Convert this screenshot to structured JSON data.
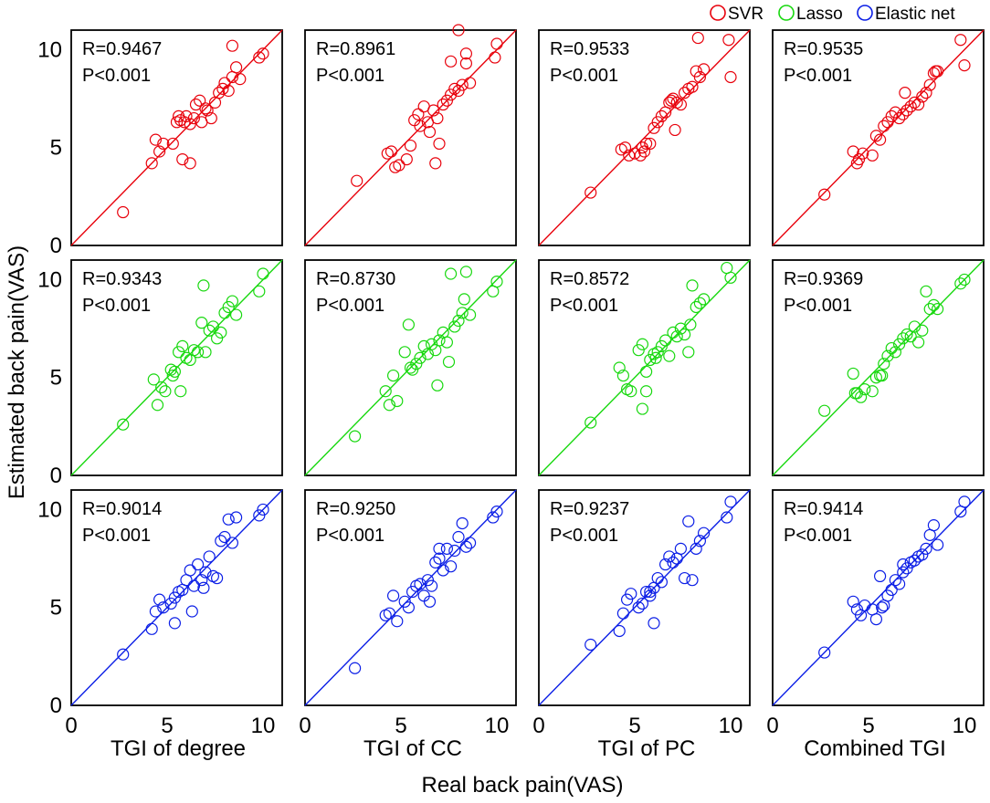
{
  "legend": {
    "position": "top-right",
    "entries": [
      {
        "label": "SVR",
        "color": "#e8000b"
      },
      {
        "label": "Lasso",
        "color": "#17d80e"
      },
      {
        "label": "Elastic net",
        "color": "#0b1ee6"
      }
    ]
  },
  "xlabel": "Real back pain(VAS)",
  "ylabel": "Estimated back pain(VAS)",
  "column_labels": [
    "TGI of degree",
    "TGI of CC",
    "TGI of PC",
    "Combined TGI"
  ],
  "chart_data": {
    "type": "scatter",
    "title": "",
    "xlabel": "Real back pain(VAS)",
    "ylabel": "Estimated back pain(VAS)",
    "xlim": [
      0,
      11
    ],
    "ylim": [
      0,
      11
    ],
    "xticks": [
      0,
      5,
      10
    ],
    "yticks": [
      0,
      5,
      10
    ],
    "models": [
      "SVR",
      "Lasso",
      "Elastic net"
    ],
    "features": [
      "TGI of degree",
      "TGI of CC",
      "TGI of PC",
      "Combined TGI"
    ],
    "panels": [
      {
        "model": "SVR",
        "feature": "TGI of degree",
        "r_text": "R=0.9467",
        "p_text": "P<0.001",
        "x": [
          2.7,
          4.2,
          4.4,
          4.6,
          4.8,
          5.3,
          5.5,
          5.6,
          5.7,
          5.9,
          6.0,
          6.2,
          6.4,
          6.5,
          6.7,
          6.8,
          7.0,
          7.1,
          7.3,
          7.5,
          7.7,
          7.9,
          8.0,
          8.2,
          8.4,
          8.6,
          8.8,
          9.8,
          10.0,
          8.4,
          5.8,
          6.2
        ],
        "y": [
          1.7,
          4.2,
          5.4,
          4.8,
          5.2,
          5.2,
          6.3,
          6.6,
          6.4,
          6.3,
          6.6,
          6.2,
          6.5,
          7.2,
          7.4,
          6.3,
          7.0,
          6.9,
          6.5,
          7.3,
          7.8,
          8.0,
          8.3,
          7.9,
          8.6,
          9.1,
          8.5,
          9.6,
          9.8,
          10.2,
          4.4,
          4.2
        ]
      },
      {
        "model": "SVR",
        "feature": "TGI of CC",
        "r_text": "R=0.8961",
        "p_text": "P<0.001",
        "x": [
          2.7,
          4.3,
          4.5,
          4.7,
          4.9,
          5.3,
          5.5,
          5.7,
          5.9,
          6.0,
          6.2,
          6.4,
          6.5,
          6.7,
          6.9,
          7.0,
          7.2,
          7.4,
          7.6,
          7.8,
          8.0,
          8.2,
          8.4,
          8.6,
          9.9,
          10.0,
          8.0,
          7.6,
          8.4,
          6.8
        ],
        "y": [
          3.3,
          4.7,
          4.8,
          4.0,
          4.1,
          4.4,
          5.1,
          6.4,
          6.7,
          6.1,
          7.1,
          6.3,
          5.8,
          6.9,
          6.5,
          5.2,
          7.2,
          7.4,
          7.7,
          8.0,
          7.9,
          8.2,
          9.8,
          8.3,
          9.6,
          10.3,
          11.0,
          9.4,
          9.3,
          4.2
        ]
      },
      {
        "model": "SVR",
        "feature": "TGI of PC",
        "r_text": "R=0.9533",
        "p_text": "P<0.001",
        "x": [
          2.7,
          4.3,
          4.5,
          4.7,
          5.0,
          5.3,
          5.5,
          5.6,
          5.8,
          6.0,
          6.2,
          6.4,
          6.6,
          6.8,
          7.0,
          7.2,
          7.4,
          7.6,
          7.8,
          8.0,
          8.2,
          8.4,
          8.6,
          9.9,
          10.0,
          8.3,
          7.1,
          6.9,
          5.4
        ],
        "y": [
          2.7,
          4.9,
          5.0,
          4.6,
          4.7,
          4.6,
          4.8,
          5.2,
          5.2,
          6.0,
          6.3,
          6.6,
          6.8,
          7.3,
          7.5,
          7.3,
          7.2,
          7.8,
          8.0,
          8.1,
          8.9,
          8.6,
          9.0,
          10.5,
          8.6,
          10.6,
          5.9,
          7.4,
          5.0
        ]
      },
      {
        "model": "SVR",
        "feature": "Combined TGI",
        "r_text": "R=0.9535",
        "p_text": "P<0.001",
        "x": [
          2.7,
          4.2,
          4.4,
          4.5,
          4.7,
          5.2,
          5.4,
          5.6,
          5.8,
          6.0,
          6.2,
          6.4,
          6.6,
          6.8,
          7.0,
          7.2,
          7.4,
          7.6,
          7.8,
          8.0,
          8.2,
          8.4,
          8.6,
          9.8,
          10.0,
          8.5,
          6.9
        ],
        "y": [
          2.6,
          4.8,
          4.2,
          4.4,
          4.7,
          4.6,
          5.6,
          5.4,
          6.1,
          6.3,
          6.6,
          6.8,
          6.5,
          6.7,
          6.9,
          7.1,
          7.3,
          7.2,
          7.6,
          7.8,
          8.2,
          8.8,
          8.9,
          10.5,
          9.2,
          8.9,
          7.8
        ]
      },
      {
        "model": "Lasso",
        "feature": "TGI of degree",
        "r_text": "R=0.9343",
        "p_text": "P<0.001",
        "x": [
          2.7,
          4.3,
          4.5,
          4.7,
          4.9,
          5.2,
          5.4,
          5.6,
          5.8,
          6.0,
          6.2,
          6.4,
          6.6,
          6.8,
          7.0,
          7.2,
          7.4,
          7.6,
          7.8,
          8.0,
          8.2,
          8.4,
          8.6,
          9.8,
          10.0,
          6.9,
          5.7,
          5.3
        ],
        "y": [
          2.6,
          4.9,
          3.6,
          4.5,
          4.3,
          5.4,
          5.3,
          6.3,
          6.6,
          6.0,
          5.9,
          6.4,
          6.3,
          7.8,
          6.3,
          7.4,
          7.6,
          7.0,
          7.3,
          8.3,
          8.6,
          8.9,
          8.2,
          9.4,
          10.3,
          9.7,
          4.3,
          5.1
        ]
      },
      {
        "model": "Lasso",
        "feature": "TGI of CC",
        "r_text": "R=0.8730",
        "p_text": "P<0.001",
        "x": [
          2.6,
          4.2,
          4.4,
          4.6,
          4.8,
          5.2,
          5.4,
          5.6,
          5.8,
          6.0,
          6.2,
          6.4,
          6.6,
          6.8,
          7.0,
          7.2,
          7.4,
          7.6,
          7.8,
          8.0,
          8.2,
          8.4,
          8.6,
          9.8,
          10.0,
          7.5,
          8.3,
          5.5,
          6.9
        ],
        "y": [
          2.0,
          4.3,
          3.6,
          5.1,
          3.8,
          6.3,
          7.7,
          5.4,
          5.7,
          6.0,
          6.6,
          6.2,
          6.7,
          6.4,
          6.9,
          7.3,
          6.8,
          10.3,
          7.6,
          7.9,
          8.3,
          10.4,
          8.2,
          9.4,
          9.9,
          5.8,
          9.0,
          5.5,
          4.6
        ]
      },
      {
        "model": "Lasso",
        "feature": "TGI of PC",
        "r_text": "R=0.8572",
        "p_text": "P<0.001",
        "x": [
          2.7,
          4.2,
          4.4,
          4.6,
          4.8,
          5.2,
          5.4,
          5.6,
          5.8,
          6.0,
          6.2,
          6.4,
          6.6,
          6.8,
          7.0,
          7.2,
          7.4,
          7.6,
          7.8,
          8.0,
          8.2,
          8.4,
          8.6,
          9.8,
          10.0,
          7.9,
          5.4,
          5.6,
          6.1
        ],
        "y": [
          2.7,
          5.5,
          5.1,
          4.4,
          4.3,
          6.4,
          3.4,
          4.3,
          5.9,
          6.2,
          6.3,
          6.6,
          6.9,
          6.1,
          7.3,
          7.1,
          7.5,
          7.2,
          6.3,
          9.7,
          8.6,
          8.8,
          9.0,
          10.6,
          10.1,
          7.7,
          6.7,
          5.3,
          6.0
        ]
      },
      {
        "model": "Lasso",
        "feature": "Combined TGI",
        "r_text": "R=0.9369",
        "p_text": "P<0.001",
        "x": [
          2.7,
          4.2,
          4.4,
          4.6,
          4.8,
          5.2,
          5.4,
          5.6,
          5.8,
          6.0,
          6.2,
          6.4,
          6.6,
          6.8,
          7.0,
          7.2,
          7.4,
          7.6,
          7.8,
          8.0,
          8.2,
          8.4,
          8.6,
          9.8,
          10.0,
          5.7,
          4.3
        ],
        "y": [
          3.3,
          5.2,
          4.2,
          4.0,
          4.4,
          4.3,
          5.0,
          5.1,
          5.7,
          6.1,
          6.5,
          6.3,
          6.7,
          7.0,
          7.2,
          7.1,
          7.6,
          6.8,
          7.4,
          9.4,
          8.5,
          8.7,
          8.5,
          9.8,
          10.0,
          5.1,
          4.2
        ]
      },
      {
        "model": "Elastic net",
        "feature": "TGI of degree",
        "r_text": "R=0.9014",
        "p_text": "P<0.001",
        "x": [
          2.7,
          4.2,
          4.4,
          4.6,
          4.8,
          5.2,
          5.4,
          5.6,
          5.8,
          6.0,
          6.2,
          6.4,
          6.6,
          6.8,
          7.0,
          7.2,
          7.4,
          7.6,
          7.8,
          8.0,
          8.2,
          8.4,
          8.6,
          9.8,
          10.0,
          6.3,
          5.4,
          6.9
        ],
        "y": [
          2.6,
          3.9,
          4.8,
          5.4,
          5.0,
          5.2,
          5.5,
          5.8,
          5.9,
          6.4,
          6.9,
          6.1,
          7.2,
          6.4,
          6.8,
          7.6,
          6.6,
          6.5,
          8.4,
          8.6,
          9.5,
          8.3,
          9.6,
          9.7,
          10.0,
          4.8,
          4.2,
          6.0
        ]
      },
      {
        "model": "Elastic net",
        "feature": "TGI of CC",
        "r_text": "R=0.9250",
        "p_text": "P<0.001",
        "x": [
          2.6,
          4.2,
          4.4,
          4.6,
          4.8,
          5.2,
          5.4,
          5.6,
          5.8,
          6.0,
          6.2,
          6.4,
          6.6,
          6.8,
          7.0,
          7.2,
          7.4,
          7.6,
          7.8,
          8.0,
          8.2,
          8.4,
          8.6,
          9.8,
          10.0,
          6.5,
          7.0
        ],
        "y": [
          1.9,
          4.6,
          4.7,
          5.6,
          4.3,
          5.3,
          5.0,
          5.8,
          6.1,
          6.2,
          5.6,
          6.4,
          6.1,
          7.3,
          7.5,
          6.9,
          8.0,
          7.1,
          7.9,
          8.6,
          9.3,
          8.1,
          8.3,
          9.6,
          9.9,
          5.3,
          8.0
        ]
      },
      {
        "model": "Elastic net",
        "feature": "TGI of PC",
        "r_text": "R=0.9237",
        "p_text": "P<0.001",
        "x": [
          2.7,
          4.2,
          4.4,
          4.6,
          4.8,
          5.2,
          5.4,
          5.6,
          5.8,
          6.0,
          6.2,
          6.4,
          6.6,
          6.8,
          7.0,
          7.2,
          7.4,
          7.6,
          7.8,
          8.0,
          8.2,
          8.4,
          8.6,
          9.8,
          10.0,
          5.8,
          6.0
        ],
        "y": [
          3.1,
          3.8,
          4.7,
          5.4,
          5.7,
          5.0,
          5.2,
          5.8,
          5.6,
          6.0,
          6.5,
          6.3,
          7.2,
          7.6,
          7.3,
          7.5,
          8.0,
          6.5,
          9.4,
          6.4,
          8.0,
          8.4,
          8.8,
          9.6,
          10.4,
          5.8,
          4.2
        ]
      },
      {
        "model": "Elastic net",
        "feature": "Combined TGI",
        "r_text": "R=0.9414",
        "p_text": "P<0.001",
        "x": [
          2.7,
          4.2,
          4.4,
          4.6,
          4.8,
          5.2,
          5.4,
          5.6,
          5.8,
          6.0,
          6.2,
          6.4,
          6.6,
          6.8,
          7.0,
          7.2,
          7.4,
          7.6,
          7.8,
          8.0,
          8.2,
          8.4,
          8.6,
          9.8,
          10.0,
          5.7,
          6.8
        ],
        "y": [
          2.7,
          5.3,
          4.9,
          4.6,
          5.1,
          4.9,
          4.4,
          6.6,
          5.1,
          5.6,
          5.9,
          6.4,
          6.2,
          7.2,
          7.0,
          7.3,
          7.4,
          7.6,
          7.7,
          8.0,
          8.7,
          9.2,
          8.2,
          9.9,
          10.4,
          5.0,
          6.8
        ]
      }
    ]
  }
}
